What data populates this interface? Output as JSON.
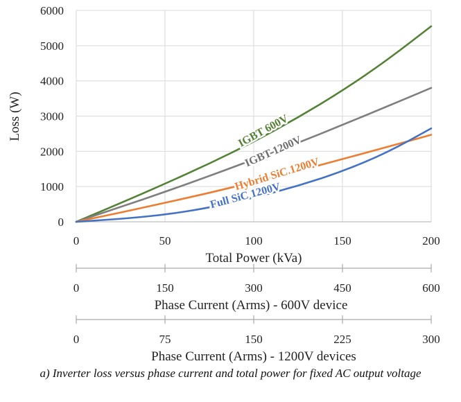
{
  "chart_data": {
    "type": "line",
    "ylabel": "Loss (W)",
    "xlabel": "Total Power (kVa)",
    "xlim": [
      0,
      200
    ],
    "ylim": [
      0,
      6000
    ],
    "x_ticks": [
      "0",
      "50",
      "100",
      "150",
      "200"
    ],
    "y_ticks": [
      "0",
      "1000",
      "2000",
      "3000",
      "4000",
      "5000",
      "6000"
    ],
    "grid": true,
    "secondary_axes": [
      {
        "label": "Phase Current (Arms) - 600V device",
        "ticks": [
          "0",
          "150",
          "300",
          "450",
          "600"
        ]
      },
      {
        "label": "Phase Current (Arms) - 1200V devices",
        "ticks": [
          "0",
          "75",
          "150",
          "225",
          "300"
        ]
      }
    ],
    "x": [
      0,
      25,
      50,
      75,
      100,
      125,
      150,
      175,
      200
    ],
    "series": [
      {
        "name": "IGBT 600V",
        "color": "#548235",
        "values": [
          0,
          530,
          1080,
          1650,
          2270,
          2960,
          3720,
          4580,
          5550
        ]
      },
      {
        "name": "IGBT 1200V",
        "color": "#7f7f7f",
        "values": [
          0,
          420,
          850,
          1300,
          1770,
          2240,
          2750,
          3270,
          3800
        ]
      },
      {
        "name": "Hybrid SiC 1200V",
        "color": "#ed7d31",
        "values": [
          0,
          260,
          540,
          820,
          1130,
          1440,
          1780,
          2120,
          2470
        ]
      },
      {
        "name": "Full SiC 1200V",
        "color": "#4472c4",
        "values": [
          0,
          80,
          200,
          400,
          680,
          1020,
          1430,
          1960,
          2650
        ]
      }
    ]
  },
  "caption": "a) Inverter loss versus phase current and total power for fixed AC output voltage"
}
